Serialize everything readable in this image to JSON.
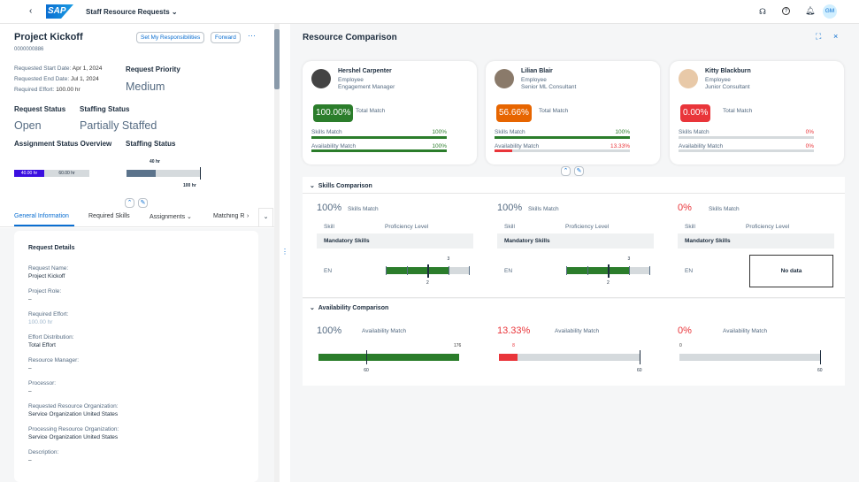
{
  "shell": {
    "title": "Staff Resource Requests",
    "logo": "SAP",
    "avatar": "GM",
    "icons": [
      "back-icon",
      "headset-icon",
      "help-icon",
      "bell-icon"
    ]
  },
  "request": {
    "title": "Project Kickoff",
    "id": "0000000886",
    "buttons": [
      "Set My Responsibilities",
      "Forward"
    ],
    "start_label": "Requested Start Date:",
    "start": "Apr 1, 2024",
    "end_label": "Requested End Date:",
    "end": "Jul 1, 2024",
    "effort_label": "Required Effort:",
    "effort": "100.00 hr",
    "priority_label": "Request Priority",
    "priority": "Medium",
    "status_label": "Request Status",
    "status": "Open",
    "staffing_label": "Staffing Status",
    "staffing": "Partially Staffed",
    "assign_label": "Assignment Status Overview",
    "assigned": "40.00 hr",
    "open": "60.00 hr",
    "staffing_chart_label": "Staffing Status",
    "staffed_value": "40 hr",
    "total_value": "100 hr",
    "staffed_fraction": 0.4
  },
  "tabs": [
    "General Information",
    "Required Skills",
    "Assignments",
    "Matching R"
  ],
  "details": {
    "title": "Request Details",
    "fields": [
      {
        "label": "Request Name:",
        "value": "Project Kickoff"
      },
      {
        "label": "Project Role:",
        "value": "–"
      },
      {
        "label": "Required Effort:",
        "value": "100.00 hr"
      },
      {
        "label": "Effort Distribution:",
        "value": "Total Effort"
      },
      {
        "label": "Resource Manager:",
        "value": "–"
      },
      {
        "label": "Processor:",
        "value": "–"
      },
      {
        "label": "Requested Resource Organization:",
        "value": "Service Organization United States"
      },
      {
        "label": "Processing Resource Organization:",
        "value": "Service Organization United States"
      },
      {
        "label": "Description:",
        "value": "–"
      }
    ]
  },
  "comparison": {
    "title": "Resource Comparison",
    "total_label": "Total Match",
    "skills_label": "Skills Match",
    "avail_label": "Availability Match",
    "candidates": [
      {
        "name": "Hershel Carpenter",
        "type": "Employee",
        "role": "Engagement Manager",
        "total": "100.00%",
        "color": "#2b7d2b",
        "skills": "100%",
        "skills_frac": 1,
        "avail": "100%",
        "avail_frac": 1,
        "avail_color": "#2b7d2b"
      },
      {
        "name": "Lilian Blair",
        "type": "Employee",
        "role": "Senior ML Consultant",
        "total": "56.66%",
        "color": "#e76500",
        "skills": "100%",
        "skills_frac": 1,
        "avail": "13.33%",
        "avail_frac": 0.1333,
        "avail_color": "#e9353a"
      },
      {
        "name": "Kitty Blackburn",
        "type": "Employee",
        "role": "Junior Consultant",
        "total": "0.00%",
        "color": "#e9353a",
        "skills": "0%",
        "skills_frac": 0,
        "avail": "0%",
        "avail_frac": 0,
        "avail_color": "#e9353a"
      }
    ]
  },
  "skills_section": {
    "title": "Skills Comparison",
    "col_skill": "Skill",
    "col_level": "Proficiency Level",
    "group": "Mandatory Skills",
    "skill": "EN",
    "no_data": "No data",
    "items": [
      {
        "pct": "100%",
        "actual": "3",
        "required": "2",
        "has_data": true
      },
      {
        "pct": "100%",
        "actual": "3",
        "required": "2",
        "has_data": true
      },
      {
        "pct": "0%",
        "has_data": false
      }
    ],
    "max_level": 4
  },
  "availability_section": {
    "title": "Availability Comparison",
    "items": [
      {
        "pct": "100%",
        "available": "176",
        "required": "60",
        "frac": 1
      },
      {
        "pct": "13.33%",
        "available": "8",
        "required": "60",
        "frac": 0.133
      },
      {
        "pct": "0%",
        "available": "0",
        "required": "60",
        "frac": 0
      }
    ]
  }
}
